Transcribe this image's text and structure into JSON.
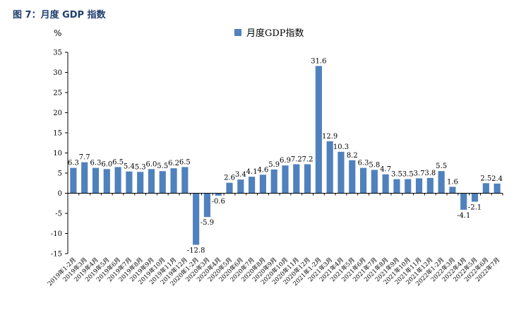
{
  "figure": {
    "title": "图 7：月度 GDP 指数"
  },
  "colors": {
    "bar": "#4f81bd",
    "axis": "#000000"
  },
  "chart_data": {
    "type": "bar",
    "title": "",
    "unit": "%",
    "ylim": [
      -15,
      35
    ],
    "yticks": [
      35,
      30,
      25,
      20,
      15,
      10,
      5,
      0,
      -5,
      -10,
      -15
    ],
    "legend": {
      "position": "top-center"
    },
    "grid": false,
    "series": [
      {
        "name": "月度GDP指数",
        "categories": [
          "2019年1-2月",
          "2019年3月",
          "2019年4月",
          "2019年5月",
          "2019年6月",
          "2019年7月",
          "2019年8月",
          "2019年9月",
          "2019年10月",
          "2019年11月",
          "2019年12月",
          "2020年1-2月",
          "2020年3月",
          "2020年4月",
          "2020年5月",
          "2020年6月",
          "2020年7月",
          "2020年8月",
          "2020年9月",
          "2020年10月",
          "2020年11月",
          "2020年12月",
          "2021年1-2月",
          "2021年3月",
          "2021年4月",
          "2021年5月",
          "2021年6月",
          "2021年7月",
          "2021年8月",
          "2021年9月",
          "2021年10月",
          "2021年11月",
          "2021年12月",
          "2022年1-2月",
          "2022年3月",
          "2022年4月",
          "2022年5月",
          "2022年6月",
          "2022年7月"
        ],
        "values": [
          6.3,
          7.7,
          6.3,
          6.0,
          6.5,
          5.4,
          5.3,
          6.0,
          5.5,
          6.2,
          6.5,
          -12.8,
          -5.9,
          -0.6,
          2.6,
          3.4,
          4.1,
          4.6,
          5.9,
          6.9,
          7.2,
          7.2,
          31.6,
          12.9,
          10.3,
          8.2,
          6.3,
          5.8,
          4.7,
          3.5,
          3.5,
          3.7,
          3.8,
          5.5,
          1.6,
          -4.1,
          -2.1,
          2.5,
          2.4
        ],
        "labels": [
          "6.3",
          "7.7",
          "6.3",
          "6.0",
          "6.5",
          "5.4",
          "5.3",
          "6.0",
          "5.5",
          "6.2",
          "6.5",
          "-12.8",
          "-5.9",
          "-0.6",
          "2.6",
          "3.4",
          "4.1",
          "4.6",
          "5.9",
          "6.9",
          "7.2",
          "7.2",
          "31.6",
          "12.9",
          "10.3",
          "8.2",
          "6.3",
          "5.8",
          "4.7",
          "3.5",
          "3.5",
          "3.7",
          "3.8",
          "5.5",
          "1.6",
          "-4.1",
          "-2.1",
          "2.5",
          "2.4"
        ]
      }
    ]
  }
}
